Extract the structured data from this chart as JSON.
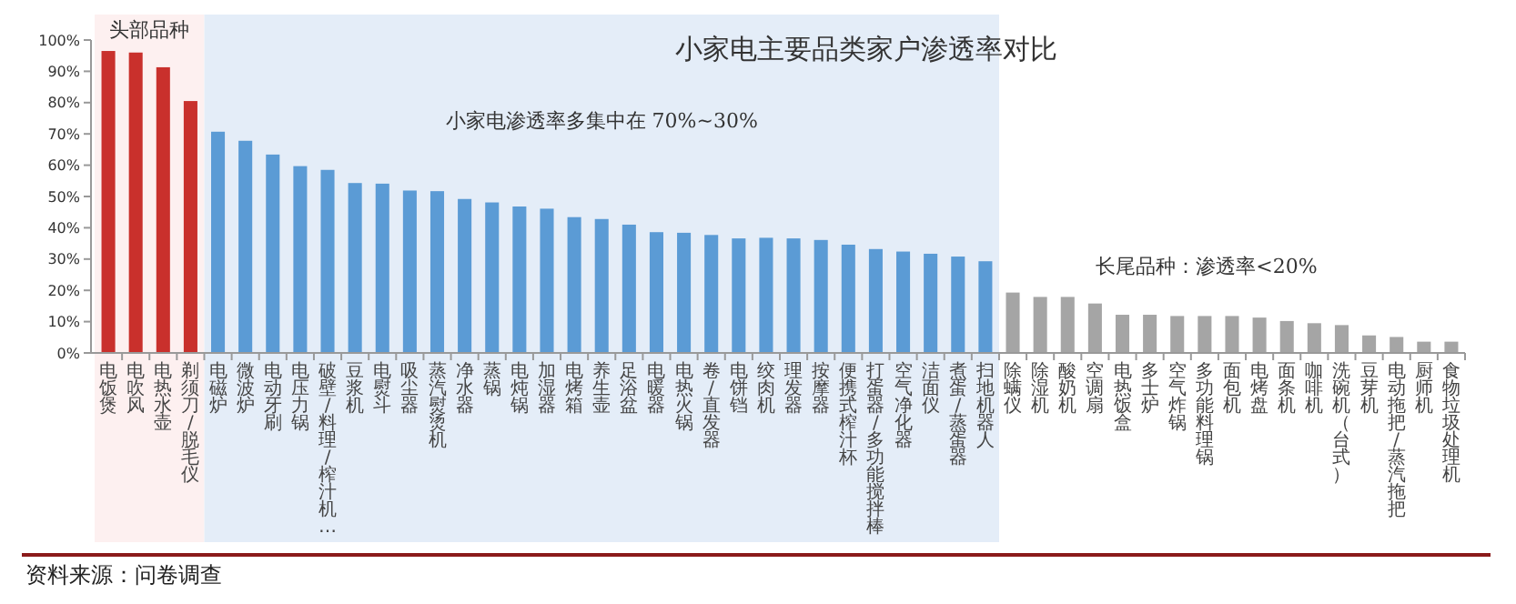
{
  "chart_data": {
    "type": "bar",
    "title": "小家电主要品类家户渗透率对比",
    "categories": [
      "电饭煲",
      "电吹风",
      "电热水壶",
      "剃须刀/脱毛仪",
      "电磁炉",
      "微波炉",
      "电动牙刷",
      "电压力锅",
      "破壁/料理/榨汁机…",
      "豆浆机",
      "电熨斗",
      "吸尘器",
      "蒸汽熨烫机",
      "净水器",
      "蒸锅",
      "电炖锅",
      "加湿器",
      "电烤箱",
      "养生壶",
      "足浴盆",
      "电暖器",
      "电热火锅",
      "卷/直发器",
      "电饼铛",
      "绞肉机",
      "理发器",
      "按摩器",
      "便携式榨汁杯",
      "打蛋器/多功能搅拌棒",
      "空气净化器",
      "洁面仪",
      "煮蛋/蒸蛋器",
      "扫地机器人",
      "除螨仪",
      "除湿机",
      "酸奶机",
      "空调扇",
      "电热饭盒",
      "多士炉",
      "空气炸锅",
      "多功能料理锅",
      "面包机",
      "电烤盘",
      "面条机",
      "咖啡机",
      "洗碗机（台式）",
      "豆芽机",
      "电动拖把/蒸汽拖把",
      "厨师机",
      "食物垃圾处理机"
    ],
    "values": [
      96.5,
      96,
      91.3,
      80.5,
      70.7,
      67.8,
      63.4,
      59.7,
      58.5,
      54.3,
      54.1,
      51.9,
      51.7,
      49.2,
      48.1,
      46.8,
      46.1,
      43.4,
      42.8,
      41,
      38.6,
      38.4,
      37.7,
      36.6,
      36.8,
      36.6,
      36.1,
      34.6,
      33.2,
      32.4,
      31.7,
      30.8,
      29.3,
      19.3,
      17.9,
      17.9,
      15.8,
      12.2,
      12.2,
      11.8,
      11.8,
      11.8,
      11.3,
      10.2,
      9.5,
      8.9,
      5.6,
      5.1,
      3.6,
      3.6
    ],
    "colors": [
      "#c9302c",
      "#c9302c",
      "#c9302c",
      "#c9302c",
      "#5b9bd5",
      "#5b9bd5",
      "#5b9bd5",
      "#5b9bd5",
      "#5b9bd5",
      "#5b9bd5",
      "#5b9bd5",
      "#5b9bd5",
      "#5b9bd5",
      "#5b9bd5",
      "#5b9bd5",
      "#5b9bd5",
      "#5b9bd5",
      "#5b9bd5",
      "#5b9bd5",
      "#5b9bd5",
      "#5b9bd5",
      "#5b9bd5",
      "#5b9bd5",
      "#5b9bd5",
      "#5b9bd5",
      "#5b9bd5",
      "#5b9bd5",
      "#5b9bd5",
      "#5b9bd5",
      "#5b9bd5",
      "#5b9bd5",
      "#5b9bd5",
      "#5b9bd5",
      "#a5a5a5",
      "#a5a5a5",
      "#a5a5a5",
      "#a5a5a5",
      "#a5a5a5",
      "#a5a5a5",
      "#a5a5a5",
      "#a5a5a5",
      "#a5a5a5",
      "#a5a5a5",
      "#a5a5a5",
      "#a5a5a5",
      "#a5a5a5",
      "#a5a5a5",
      "#a5a5a5",
      "#a5a5a5",
      "#a5a5a5"
    ],
    "ylim": [
      0,
      100
    ],
    "yticks": [
      {
        "value": 0,
        "label": "0%"
      },
      {
        "value": 10,
        "label": "10%"
      },
      {
        "value": 20,
        "label": "20%"
      },
      {
        "value": 30,
        "label": "30%"
      },
      {
        "value": 40,
        "label": "40%"
      },
      {
        "value": 50,
        "label": "50%"
      },
      {
        "value": 60,
        "label": "60%"
      },
      {
        "value": 70,
        "label": "70%"
      },
      {
        "value": 80,
        "label": "80%"
      },
      {
        "value": 90,
        "label": "90%"
      },
      {
        "value": 100,
        "label": "100%"
      }
    ],
    "bands": [
      {
        "axis": "x",
        "from": "电饭煲",
        "to": "剃须刀/脱毛仪",
        "label": "头部品种",
        "color": "#fdf0f0"
      },
      {
        "axis": "x",
        "from": "电磁炉",
        "to": "扫地机器人",
        "label": "小家电渗透率多集中在 70%~30%",
        "color": "#e4edf8"
      }
    ],
    "annotations": [
      "长尾品种：渗透率<20%",
      "资料来源：问卷调查"
    ],
    "grid": false
  }
}
